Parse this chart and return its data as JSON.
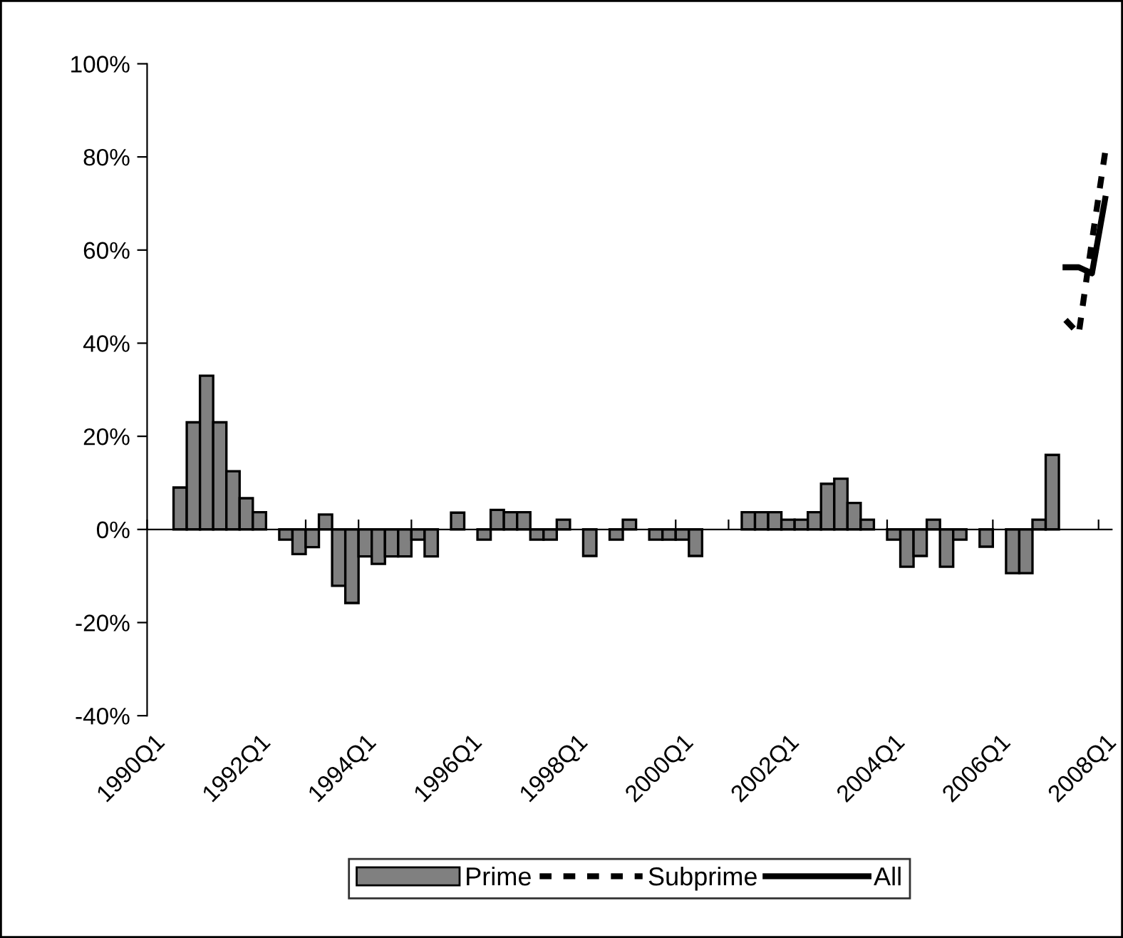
{
  "chart_data": {
    "type": "bar",
    "categories": [
      "1990Q1",
      null,
      null,
      null,
      null,
      null,
      null,
      null,
      "1992Q1",
      null,
      null,
      null,
      null,
      null,
      null,
      null,
      "1994Q1",
      null,
      null,
      null,
      null,
      null,
      null,
      null,
      "1996Q1",
      null,
      null,
      null,
      null,
      null,
      null,
      null,
      "1998Q1",
      null,
      null,
      null,
      null,
      null,
      null,
      null,
      "2000Q1",
      null,
      null,
      null,
      null,
      null,
      null,
      null,
      "2002Q1",
      null,
      null,
      null,
      null,
      null,
      null,
      null,
      "2004Q1",
      null,
      null,
      null,
      null,
      null,
      null,
      null,
      "2006Q1",
      null,
      null,
      null,
      null,
      null,
      null,
      null,
      "2008Q1"
    ],
    "series": [
      {
        "name": "Prime",
        "color": "#808080",
        "values": [
          null,
          null,
          9,
          23,
          33,
          23,
          12.5,
          6.7,
          3.7,
          null,
          -2.2,
          -5.3,
          -3.8,
          3.2,
          -12.1,
          -15.8,
          -5.8,
          -7.4,
          -5.8,
          -5.8,
          -2.2,
          -5.8,
          null,
          3.6,
          null,
          -2.2,
          4.2,
          3.7,
          3.7,
          -2.2,
          -2.2,
          2.1,
          null,
          -5.7,
          null,
          -2.2,
          2.1,
          null,
          -2.2,
          -2.2,
          -2.2,
          -5.7,
          null,
          null,
          null,
          3.7,
          3.7,
          3.7,
          2.1,
          2.1,
          3.7,
          9.8,
          10.9,
          5.7,
          2.1,
          null,
          -2.2,
          -8,
          -5.7,
          2.1,
          -8,
          -2.2,
          null,
          -3.7,
          null,
          -9.4,
          -9.4,
          2.1,
          16,
          null,
          null,
          null,
          null
        ]
      },
      {
        "name": "Subprime",
        "type": "line",
        "line_style": "dashed",
        "color": "#000000",
        "values": [
          null,
          null,
          null,
          null,
          null,
          null,
          null,
          null,
          null,
          null,
          null,
          null,
          null,
          null,
          null,
          null,
          null,
          null,
          null,
          null,
          null,
          null,
          null,
          null,
          null,
          null,
          null,
          null,
          null,
          null,
          null,
          null,
          null,
          null,
          null,
          null,
          null,
          null,
          null,
          null,
          null,
          null,
          null,
          null,
          null,
          null,
          null,
          null,
          null,
          null,
          null,
          null,
          null,
          null,
          null,
          null,
          null,
          null,
          null,
          null,
          null,
          null,
          null,
          null,
          null,
          null,
          null,
          null,
          null,
          45,
          42,
          62,
          81
        ]
      },
      {
        "name": "All",
        "type": "line",
        "line_style": "solid",
        "color": "#000000",
        "values": [
          null,
          null,
          null,
          null,
          null,
          null,
          null,
          null,
          null,
          null,
          null,
          null,
          null,
          null,
          null,
          null,
          null,
          null,
          null,
          null,
          null,
          null,
          null,
          null,
          null,
          null,
          null,
          null,
          null,
          null,
          null,
          null,
          null,
          null,
          null,
          null,
          null,
          null,
          null,
          null,
          null,
          null,
          null,
          null,
          null,
          null,
          null,
          null,
          null,
          null,
          null,
          null,
          null,
          null,
          null,
          null,
          null,
          null,
          null,
          null,
          null,
          null,
          null,
          null,
          null,
          null,
          null,
          null,
          null,
          56.3,
          56.3,
          55,
          71
        ]
      }
    ],
    "ylim": [
      -40,
      100
    ],
    "yticks": [
      {
        "value": -40,
        "label": "-40%"
      },
      {
        "value": -20,
        "label": "-20%"
      },
      {
        "value": 0,
        "label": "0%"
      },
      {
        "value": 20,
        "label": "20%"
      },
      {
        "value": 40,
        "label": "40%"
      },
      {
        "value": 60,
        "label": "60%"
      },
      {
        "value": 80,
        "label": "80%"
      },
      {
        "value": 100,
        "label": "100%"
      }
    ],
    "legend": "bottom"
  }
}
